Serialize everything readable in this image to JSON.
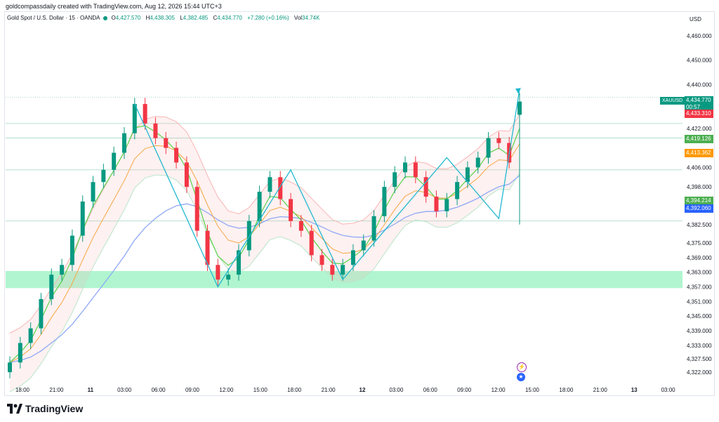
{
  "attribution": "goldcompassdaily created with TradingView.com, Aug 12, 2026 15:44 UTC+3",
  "legend": {
    "symbol": "Gold Spot / U.S. Dollar · 15 · OANDA",
    "open_label": "O",
    "open": "4,427.570",
    "high_label": "H",
    "high": "4,438.305",
    "low_label": "L",
    "low": "4,382.485",
    "close_label": "C",
    "close": "4,434.770",
    "change": "+7.280 (+0.16%)",
    "vol_label": "Vol",
    "vol": "34.74K"
  },
  "currency": "USD",
  "price_axis": [
    "4,460.000",
    "4,450.000",
    "4,440.000",
    "4,422.000",
    "4,406.000",
    "4,398.000",
    "4,382.500",
    "4,375.000",
    "4,369.000",
    "4,363.000",
    "4,357.000",
    "4,351.000",
    "4,345.000",
    "4,339.000",
    "4,333.000",
    "4,327.500",
    "4,322.000"
  ],
  "time_axis": [
    {
      "label": "18:00",
      "bold": false
    },
    {
      "label": "21:00",
      "bold": false
    },
    {
      "label": "11",
      "bold": true
    },
    {
      "label": "03:00",
      "bold": false
    },
    {
      "label": "06:00",
      "bold": false
    },
    {
      "label": "09:00",
      "bold": false
    },
    {
      "label": "12:00",
      "bold": false
    },
    {
      "label": "15:00",
      "bold": false
    },
    {
      "label": "18:00",
      "bold": false
    },
    {
      "label": "21:00",
      "bold": false
    },
    {
      "label": "12",
      "bold": true
    },
    {
      "label": "03:00",
      "bold": false
    },
    {
      "label": "06:00",
      "bold": false
    },
    {
      "label": "09:00",
      "bold": false
    },
    {
      "label": "12:00",
      "bold": false
    },
    {
      "label": "15:00",
      "bold": false
    },
    {
      "label": "18:00",
      "bold": false
    },
    {
      "label": "21:00",
      "bold": false
    },
    {
      "label": "13",
      "bold": true
    },
    {
      "label": "03:00",
      "bold": false
    }
  ],
  "price_tags": {
    "symbol": "XAUUSD",
    "last": "4,434.770",
    "countdown": "00:57",
    "last_color": "#089981",
    "tag_red": "4,433.310",
    "tag_red_color": "#f23645",
    "tag_green": "4,419.126",
    "tag_green_color": "#4caf50",
    "tag_orange": "4,413.362",
    "tag_orange_color": "#ff9800",
    "tag_lime": "4,394.214",
    "tag_lime_color": "#4caf50",
    "tag_blue": "4,392.060",
    "tag_blue_color": "#2962ff"
  },
  "zone_color": "#86efb6",
  "pattern_color": "#22b8cf",
  "up_color": "#089981",
  "down_color": "#f23645",
  "events": [
    {
      "icon": "lightning-icon"
    },
    {
      "icon": "us-flag-icon"
    }
  ],
  "logo": "TradingView",
  "chart_data": {
    "type": "candlestick",
    "y_axis_range": [
      4318,
      4466
    ],
    "overlays": [
      "Bollinger Bands",
      "EMA fast (green)",
      "EMA mid (orange)",
      "SMA slow (blue)"
    ],
    "closes_approx": [
      4326,
      4334,
      4340,
      4352,
      4362,
      4366,
      4378,
      4392,
      4400,
      4405,
      4412,
      4420,
      4432,
      4424,
      4418,
      4414,
      4408,
      4398,
      4380,
      4366,
      4360,
      4362,
      4372,
      4384,
      4396,
      4402,
      4393,
      4384,
      4380,
      4370,
      4366,
      4362,
      4366,
      4372,
      4376,
      4386,
      4398,
      4404,
      4408,
      4402,
      4394,
      4388,
      4393,
      4400,
      4406,
      4410,
      4418,
      4416,
      4408,
      4433
    ]
  }
}
